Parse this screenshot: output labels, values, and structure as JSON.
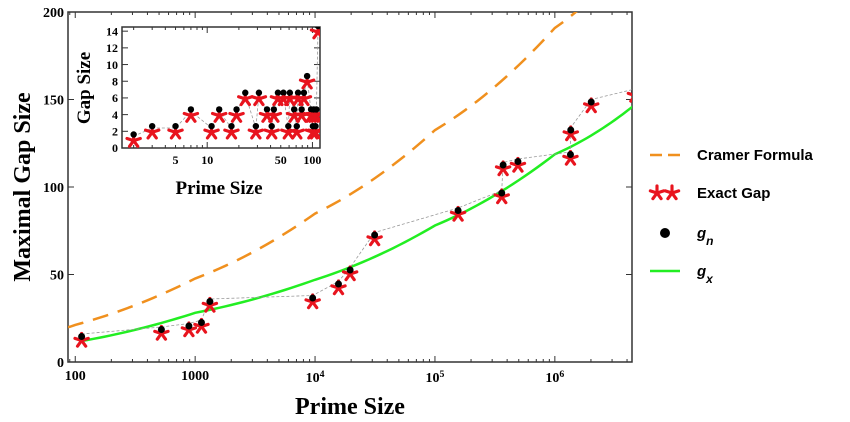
{
  "chart_data": [
    {
      "type": "scatter",
      "xlabel": "Prime Size",
      "ylabel": "Maximal Gap Size",
      "x_scale": "log",
      "xlim": [
        87,
        4400000
      ],
      "ylim": [
        0,
        200
      ],
      "x_ticks": [
        {
          "v": 100,
          "t": "100"
        },
        {
          "v": 1000,
          "t": "1000"
        },
        {
          "v": 10000,
          "b": "10",
          "e": "4"
        },
        {
          "v": 100000,
          "b": "10",
          "e": "5"
        },
        {
          "v": 1000000,
          "b": "10",
          "e": "6"
        }
      ],
      "y_ticks": [
        0,
        50,
        100,
        150,
        200
      ],
      "grid": false,
      "legend_position": "right",
      "points_x": [
        113,
        523,
        887,
        1129,
        1327,
        9551,
        15683,
        19609,
        31397,
        155921,
        360653,
        370261,
        492113,
        1349533,
        1357201,
        2010733,
        4652353
      ],
      "series": [
        {
          "name": "Cramer Formula",
          "kind": "dashed-line",
          "color": "#f0901e",
          "x": [
            87,
            100,
            1000,
            10000,
            100000,
            1000000,
            4652353
          ],
          "values": [
            19.9,
            21.2,
            47.7,
            84.8,
            132.5,
            190.9,
            235.6
          ]
        },
        {
          "name": "Exact Gap",
          "kind": "star-marker",
          "color": "#e8141e",
          "values": [
            14,
            18,
            20,
            22,
            34,
            36,
            44,
            52,
            72,
            86,
            96,
            112,
            114,
            118,
            132,
            148,
            154
          ]
        },
        {
          "name": "g",
          "sub": "n",
          "kind": "dot-marker",
          "color": "#000000",
          "values": [
            14,
            18,
            20,
            22,
            34,
            36,
            44,
            52,
            72,
            86,
            96,
            112,
            114,
            118,
            132,
            148,
            154
          ]
        },
        {
          "name": "g",
          "sub": "x",
          "kind": "solid-line",
          "color": "#22ee22",
          "x": [
            113,
            1000,
            10000,
            100000,
            1000000,
            4652353
          ],
          "values": [
            12,
            28.1,
            47,
            78,
            118.7,
            147
          ]
        }
      ]
    },
    {
      "type": "scatter",
      "xlabel": "Prime Size",
      "ylabel": "Gap Size",
      "x_scale": "log",
      "xlim": [
        1.55,
        118
      ],
      "ylim": [
        0,
        14.5
      ],
      "x_ticks": [
        5,
        10,
        50,
        100
      ],
      "y_ticks": [
        0,
        2,
        4,
        6,
        8,
        10,
        12,
        14
      ],
      "x": [
        2,
        3,
        5,
        7,
        11,
        13,
        17,
        19,
        23,
        29,
        31,
        37,
        41,
        43,
        47,
        53,
        59,
        61,
        67,
        71,
        73,
        79,
        83,
        89,
        97,
        101,
        103,
        107,
        109,
        113
      ],
      "values": [
        1,
        2,
        2,
        4,
        2,
        4,
        2,
        4,
        6,
        2,
        6,
        4,
        2,
        4,
        6,
        6,
        2,
        6,
        4,
        2,
        6,
        4,
        6,
        8,
        4,
        2,
        4,
        2,
        4,
        14
      ]
    }
  ]
}
